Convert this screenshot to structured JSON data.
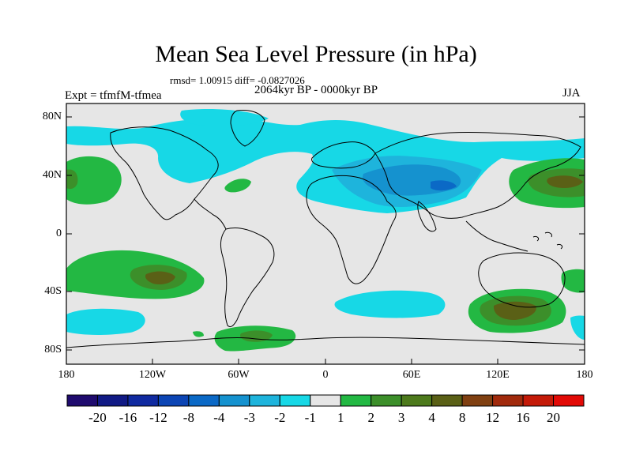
{
  "title": "Mean Sea Level Pressure (in hPa)",
  "stats": "rmsd= 1.00915 diff= -0.0827026",
  "period": "2064kyr BP - 0000kyr BP",
  "experiment": "Expt = tfmfM-tfmea",
  "season": "JJA",
  "lat_labels": [
    "80N",
    "40N",
    "0",
    "40S",
    "80S"
  ],
  "lon_labels": [
    "180",
    "120W",
    "60W",
    "0",
    "60E",
    "120E",
    "180"
  ],
  "colorbar": {
    "levels": [
      "-20",
      "-16",
      "-12",
      "-8",
      "-4",
      "-3",
      "-2",
      "-1",
      "1",
      "2",
      "3",
      "4",
      "8",
      "12",
      "16",
      "20"
    ],
    "colors": [
      "#1f0b6e",
      "#111a85",
      "#102aa0",
      "#0c45b4",
      "#0b69c6",
      "#1592cf",
      "#1eb4dc",
      "#17d8e6",
      "#e6e6e6",
      "#23b843",
      "#3c8f2a",
      "#4d7a1c",
      "#5a6016",
      "#804012",
      "#a12a0c",
      "#c41a08",
      "#e20a06"
    ]
  }
}
